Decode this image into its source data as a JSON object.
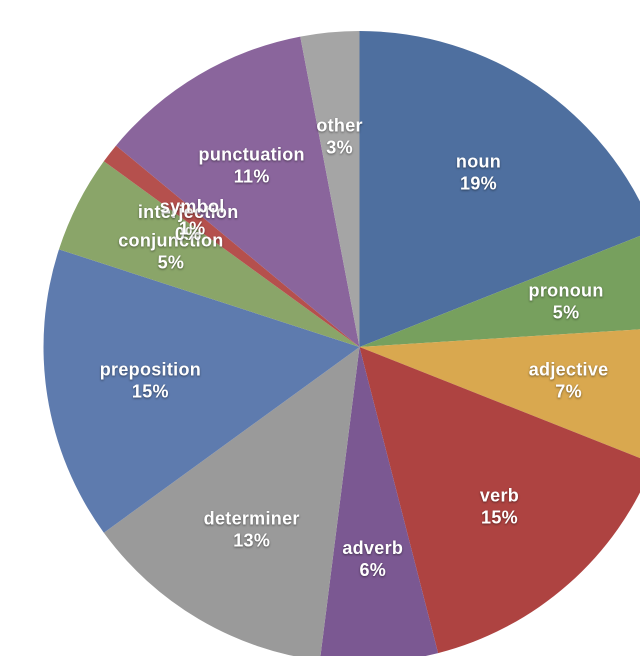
{
  "page": {
    "background_color": "#ffffff"
  },
  "chart_data": {
    "type": "pie",
    "title": "",
    "unit": "%",
    "start_angle_deg": 0,
    "direction": "clockwise",
    "legend": "none",
    "labels_on_slices": true,
    "label_text_color": "#ffffff",
    "slices": [
      {
        "label": "noun",
        "value": 19,
        "color": "#4E6F9F"
      },
      {
        "label": "pronoun",
        "value": 5,
        "color": "#77A05E"
      },
      {
        "label": "adjective",
        "value": 7,
        "color": "#D9A84F"
      },
      {
        "label": "verb",
        "value": 15,
        "color": "#AE4341"
      },
      {
        "label": "adverb",
        "value": 6,
        "color": "#7B5892"
      },
      {
        "label": "determiner",
        "value": 13,
        "color": "#9A9A9A"
      },
      {
        "label": "preposition",
        "value": 15,
        "color": "#5E7BAE"
      },
      {
        "label": "conjunction",
        "value": 5,
        "color": "#8AA569"
      },
      {
        "label": "interjection",
        "value": 0,
        "color": "#DCAF5E"
      },
      {
        "label": "symbol",
        "value": 1,
        "color": "#B5504D"
      },
      {
        "label": "punctuation",
        "value": 11,
        "color": "#8A659C"
      },
      {
        "label": "other",
        "value": 3,
        "color": "#A5A5A5"
      }
    ]
  }
}
